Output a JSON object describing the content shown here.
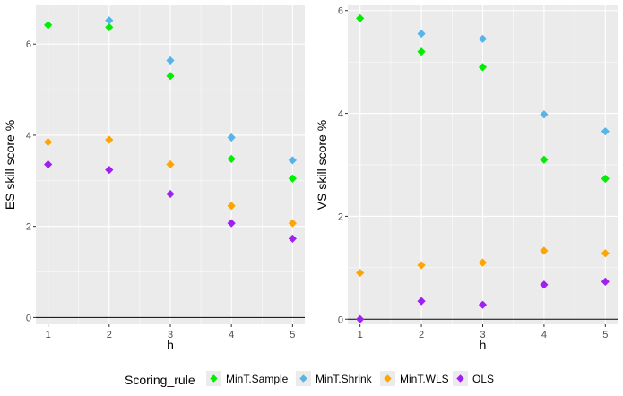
{
  "chart_data": {
    "type": "scatter",
    "x": [
      1,
      2,
      3,
      4,
      5
    ],
    "xlabel": "h",
    "legend": {
      "title": "Scoring_rule",
      "position": "bottom"
    },
    "colors": {
      "MinT.Sample": "#00ee00",
      "MinT.Shrink": "#56b4e9",
      "MinT.WLS": "#ffa500",
      "OLS": "#a020f0",
      "panel_bg": "#ebebeb",
      "grid": "#ffffff",
      "zero_line": "#000000"
    },
    "panels": [
      {
        "ylabel": "ES skill score %",
        "ylim": [
          -0.15,
          6.85
        ],
        "yticks": [
          0,
          2,
          4,
          6
        ],
        "series": [
          {
            "name": "MinT.Sample",
            "values": [
              6.42,
              6.37,
              5.3,
              3.48,
              3.05
            ]
          },
          {
            "name": "MinT.Shrink",
            "values": [
              null,
              6.52,
              5.64,
              3.95,
              3.45
            ]
          },
          {
            "name": "MinT.WLS",
            "values": [
              3.85,
              3.9,
              3.36,
              2.45,
              2.07
            ]
          },
          {
            "name": "OLS",
            "values": [
              3.36,
              3.24,
              2.71,
              2.07,
              1.73
            ]
          }
        ]
      },
      {
        "ylabel": "VS skill score %",
        "ylim": [
          -0.1,
          6.1
        ],
        "yticks": [
          0,
          2,
          4,
          6
        ],
        "series": [
          {
            "name": "MinT.Sample",
            "values": [
              5.85,
              5.2,
              4.9,
              3.1,
              2.73
            ]
          },
          {
            "name": "MinT.Shrink",
            "values": [
              null,
              5.55,
              5.45,
              3.98,
              3.65
            ]
          },
          {
            "name": "MinT.WLS",
            "values": [
              0.9,
              1.05,
              1.1,
              1.33,
              1.28
            ]
          },
          {
            "name": "OLS",
            "values": [
              0.0,
              0.35,
              0.28,
              0.67,
              0.73
            ]
          }
        ]
      }
    ]
  }
}
